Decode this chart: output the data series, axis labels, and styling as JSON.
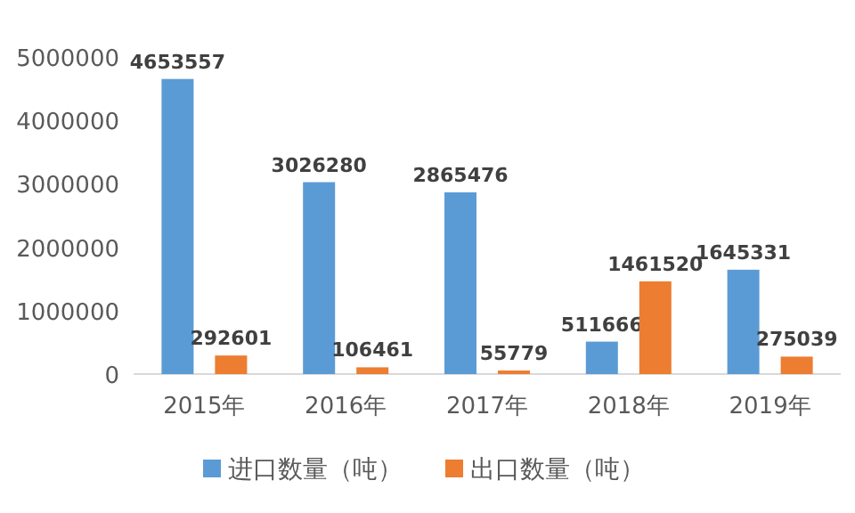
{
  "chart_data": {
    "type": "bar",
    "categories": [
      "2015年",
      "2016年",
      "2017年",
      "2018年",
      "2019年"
    ],
    "series": [
      {
        "name": "进口数量（吨）",
        "color": "#5b9bd5",
        "values": [
          4653557,
          3026280,
          2865476,
          511666,
          1645331
        ]
      },
      {
        "name": "出口数量（吨）",
        "color": "#ed7d31",
        "values": [
          292601,
          106461,
          55779,
          1461520,
          275039
        ]
      }
    ],
    "ylim": [
      0,
      5000000
    ],
    "yticks": [
      0,
      1000000,
      2000000,
      3000000,
      4000000,
      5000000
    ],
    "data_labels": true,
    "legend": "bottom",
    "grid": false
  }
}
